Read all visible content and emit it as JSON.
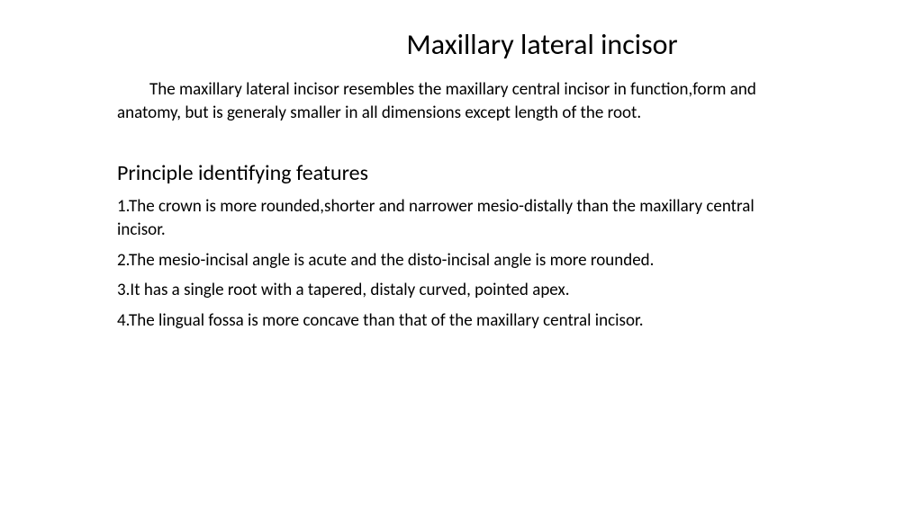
{
  "title": "Maxillary lateral incisor",
  "intro": "The maxillary lateral incisor resembles the maxillary central incisor in function,form and anatomy, but is generaly smaller in all dimensions except length of the root.",
  "subheading": "Principle identifying features",
  "features": [
    "1.The crown is more rounded,shorter and narrower mesio-distally than the maxillary central incisor.",
    "2.The mesio-incisal angle is acute and the disto-incisal angle is more rounded.",
    "3.It has a single root with a tapered, distaly curved, pointed apex.",
    "4.The lingual fossa is more concave than that of the maxillary central incisor."
  ],
  "colors": {
    "background": "#ffffff",
    "text": "#000000"
  },
  "typography": {
    "title_size": 32,
    "subheading_size": 24,
    "body_size": 19,
    "family": "Calibri"
  }
}
